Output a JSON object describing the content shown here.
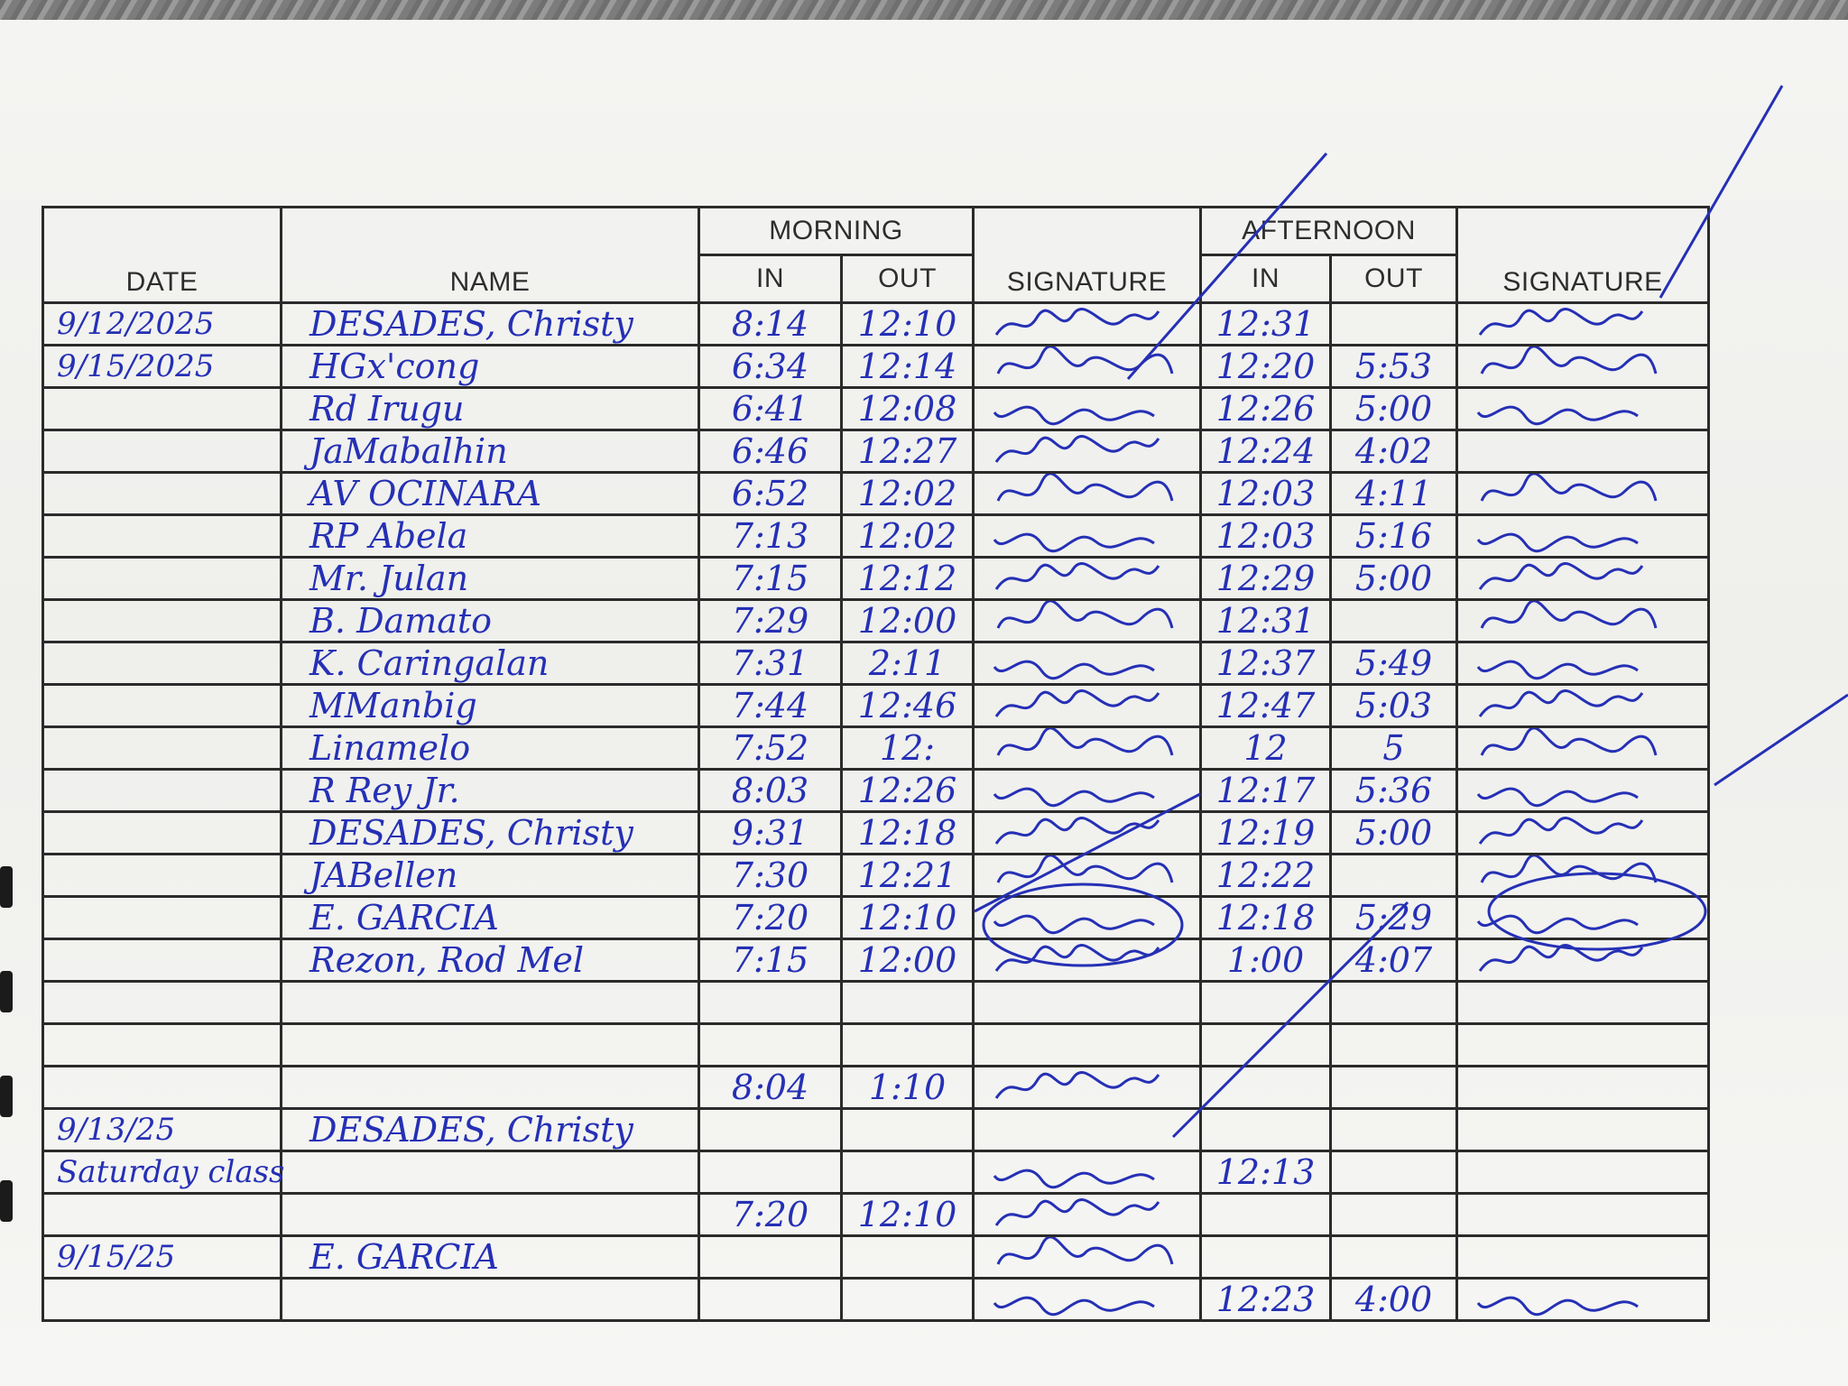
{
  "headers": {
    "date": "DATE",
    "name": "NAME",
    "morning": "MORNING",
    "afternoon": "AFTERNOON",
    "in": "IN",
    "out": "OUT",
    "signature": "SIGNATURE"
  },
  "ink_color": "#2530b5",
  "rows": [
    {
      "date": "9/12/2025",
      "name": "DESADES, Christy",
      "am_in": "8:14",
      "am_out": "12:10",
      "am_sig": true,
      "pm_in": "12:31",
      "pm_out": "",
      "pm_sig": true
    },
    {
      "date": "9/15/2025",
      "name": "HGx'cong",
      "am_in": "6:34",
      "am_out": "12:14",
      "am_sig": true,
      "pm_in": "12:20",
      "pm_out": "5:53",
      "pm_sig": true
    },
    {
      "date": "",
      "name": "Rd Irugu",
      "am_in": "6:41",
      "am_out": "12:08",
      "am_sig": true,
      "pm_in": "12:26",
      "pm_out": "5:00",
      "pm_sig": true
    },
    {
      "date": "",
      "name": "JaMabalhin",
      "am_in": "6:46",
      "am_out": "12:27",
      "am_sig": true,
      "pm_in": "12:24",
      "pm_out": "4:02",
      "pm_sig": false
    },
    {
      "date": "",
      "name": "AV OCINARA",
      "am_in": "6:52",
      "am_out": "12:02",
      "am_sig": true,
      "pm_in": "12:03",
      "pm_out": "4:11",
      "pm_sig": true
    },
    {
      "date": "",
      "name": "RP Abela",
      "am_in": "7:13",
      "am_out": "12:02",
      "am_sig": true,
      "pm_in": "12:03",
      "pm_out": "5:16",
      "pm_sig": true
    },
    {
      "date": "",
      "name": "Mr. Julan",
      "am_in": "7:15",
      "am_out": "12:12",
      "am_sig": true,
      "pm_in": "12:29",
      "pm_out": "5:00",
      "pm_sig": true
    },
    {
      "date": "",
      "name": "B. Damato",
      "am_in": "7:29",
      "am_out": "12:00",
      "am_sig": true,
      "pm_in": "12:31",
      "pm_out": "",
      "pm_sig": true
    },
    {
      "date": "",
      "name": "K. Caringalan",
      "am_in": "7:31",
      "am_out": "2:11",
      "am_sig": true,
      "pm_in": "12:37",
      "pm_out": "5:49",
      "pm_sig": true
    },
    {
      "date": "",
      "name": "MManbig",
      "am_in": "7:44",
      "am_out": "12:46",
      "am_sig": true,
      "pm_in": "12:47",
      "pm_out": "5:03",
      "pm_sig": true
    },
    {
      "date": "",
      "name": "Linamelo",
      "am_in": "7:52",
      "am_out": "12:",
      "am_sig": true,
      "pm_in": "12",
      "pm_out": "5",
      "pm_sig": true
    },
    {
      "date": "",
      "name": "R Rey Jr.",
      "am_in": "8:03",
      "am_out": "12:26",
      "am_sig": true,
      "pm_in": "12:17",
      "pm_out": "5:36",
      "pm_sig": true
    },
    {
      "date": "",
      "name": "DESADES, Christy",
      "am_in": "9:31",
      "am_out": "12:18",
      "am_sig": true,
      "pm_in": "12:19",
      "pm_out": "5:00",
      "pm_sig": true
    },
    {
      "date": "",
      "name": "JABellen",
      "am_in": "7:30",
      "am_out": "12:21",
      "am_sig": true,
      "pm_in": "12:22",
      "pm_out": "",
      "pm_sig": true
    },
    {
      "date": "",
      "name": "E. GARCIA",
      "am_in": "7:20",
      "am_out": "12:10",
      "am_sig": true,
      "pm_in": "12:18",
      "pm_out": "5:29",
      "pm_sig": true
    },
    {
      "date": "",
      "name": "Rezon, Rod Mel",
      "am_in": "7:15",
      "am_out": "12:00",
      "am_sig": true,
      "pm_in": "1:00",
      "pm_out": "4:07",
      "pm_sig": true
    },
    {
      "date": "",
      "name": "",
      "am_in": "",
      "am_out": "",
      "am_sig": false,
      "pm_in": "",
      "pm_out": "",
      "pm_sig": false
    },
    {
      "date": "",
      "name": "",
      "am_in": "",
      "am_out": "",
      "am_sig": false,
      "pm_in": "",
      "pm_out": "",
      "pm_sig": false
    },
    {
      "date": "",
      "name": "",
      "am_in": "8:04",
      "am_out": "1:10",
      "am_sig": true,
      "pm_in": "",
      "pm_out": "",
      "pm_sig": false
    },
    {
      "date": "9/13/25",
      "name": "DESADES, Christy",
      "am_in": "",
      "am_out": "",
      "am_sig": false,
      "pm_in": "",
      "pm_out": "",
      "pm_sig": false
    },
    {
      "date": "Saturday class",
      "name": "",
      "am_in": "",
      "am_out": "",
      "am_sig": true,
      "pm_in": "12:13",
      "pm_out": "",
      "pm_sig": false
    },
    {
      "date": "",
      "name": "",
      "am_in": "7:20",
      "am_out": "12:10",
      "am_sig": true,
      "pm_in": "",
      "pm_out": "",
      "pm_sig": false
    },
    {
      "date": "9/15/25",
      "name": "E. GARCIA",
      "am_in": "",
      "am_out": "",
      "am_sig": true,
      "pm_in": "",
      "pm_out": "",
      "pm_sig": false
    },
    {
      "date": "",
      "name": "",
      "am_in": "",
      "am_out": "",
      "am_sig": true,
      "pm_in": "12:23",
      "pm_out": "4:00",
      "pm_sig": true
    }
  ]
}
